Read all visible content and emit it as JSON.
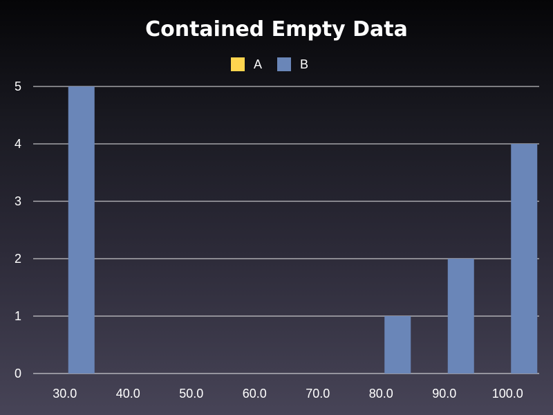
{
  "chart_data": {
    "type": "bar",
    "title": "Contained Empty Data",
    "categories": [
      "30.0",
      "40.0",
      "50.0",
      "60.0",
      "70.0",
      "80.0",
      "90.0",
      "100.0"
    ],
    "series": [
      {
        "name": "A",
        "color": "#ffd54f",
        "values": [
          0,
          0,
          0,
          0,
          0,
          0,
          0,
          0
        ]
      },
      {
        "name": "B",
        "color": "#6a86b8",
        "values": [
          5,
          0,
          0,
          0,
          0,
          1,
          2,
          4
        ]
      }
    ],
    "ylim": [
      0,
      5
    ],
    "yticks": [
      "0",
      "1",
      "2",
      "3",
      "4",
      "5"
    ],
    "grid": true,
    "legend_position": "top-center"
  }
}
